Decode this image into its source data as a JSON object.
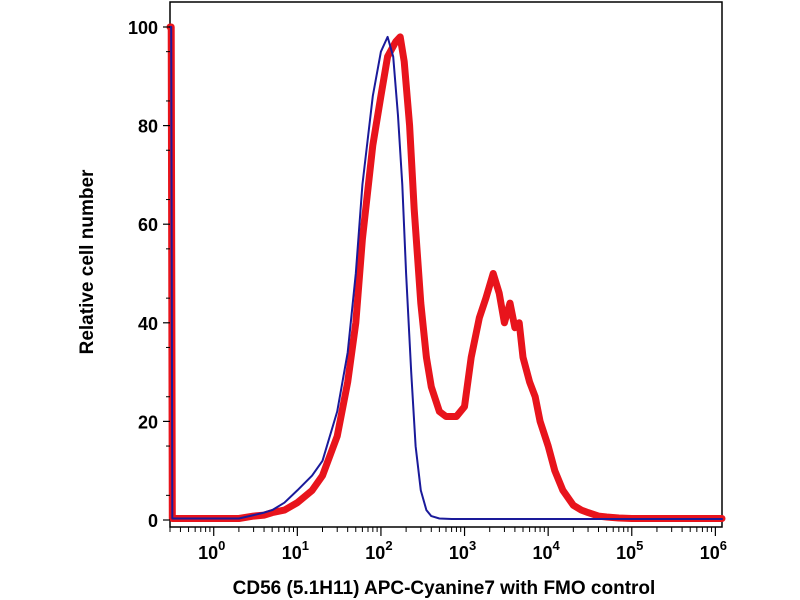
{
  "chart_data": {
    "type": "line",
    "title": "",
    "xlabel": "CD56 (5.1H11) APC-Cyanine7 with FMO control",
    "ylabel": "Relative cell number",
    "x_scale": "log",
    "xlim": [
      0.3,
      1200000
    ],
    "ylim": [
      0,
      100
    ],
    "x_ticks": [
      {
        "value": 1,
        "base": "10",
        "exp": "0"
      },
      {
        "value": 10,
        "base": "10",
        "exp": "1"
      },
      {
        "value": 100,
        "base": "10",
        "exp": "2"
      },
      {
        "value": 1000,
        "base": "10",
        "exp": "3"
      },
      {
        "value": 10000,
        "base": "10",
        "exp": "4"
      },
      {
        "value": 100000,
        "base": "10",
        "exp": "5"
      },
      {
        "value": 1000000,
        "base": "10",
        "exp": "6"
      }
    ],
    "y_ticks": [
      {
        "value": 0,
        "label": "0"
      },
      {
        "value": 20,
        "label": "20"
      },
      {
        "value": 40,
        "label": "40"
      },
      {
        "value": 60,
        "label": "60"
      },
      {
        "value": 80,
        "label": "80"
      },
      {
        "value": 100,
        "label": "100"
      }
    ],
    "grid": false,
    "legend": "none",
    "series": [
      {
        "color": "#e8141c",
        "x": [
          0.3,
          0.31,
          0.32,
          0.33,
          0.35,
          0.4,
          0.7,
          1,
          2,
          3,
          4,
          5,
          7,
          10,
          15,
          20,
          30,
          40,
          50,
          60,
          80,
          100,
          120,
          150,
          170,
          190,
          220,
          250,
          300,
          350,
          400,
          500,
          600,
          800,
          1000,
          1200,
          1500,
          1800,
          2200,
          2600,
          3000,
          3500,
          4000,
          4500,
          5000,
          6000,
          7000,
          8000,
          10000,
          12000,
          15000,
          20000,
          25000,
          30000,
          40000,
          50000,
          70000,
          100000,
          200000,
          500000,
          1000000,
          1200000
        ],
        "y": [
          100,
          100,
          0.3,
          0.3,
          0.3,
          0.3,
          0.3,
          0.3,
          0.3,
          0.8,
          1,
          1.5,
          2,
          3.5,
          6,
          9,
          17,
          28,
          40,
          57,
          76,
          86,
          94,
          97,
          98,
          93,
          80,
          63,
          44,
          33,
          27,
          22,
          21,
          21,
          23,
          33,
          41,
          45,
          50,
          46,
          40,
          44,
          39,
          40,
          33,
          28,
          25,
          20,
          15,
          10,
          6,
          3,
          2,
          1.5,
          0.8,
          0.6,
          0.4,
          0.3,
          0.3,
          0.3,
          0.3,
          0.3
        ]
      },
      {
        "color": "#1a1a9a",
        "x": [
          0.3,
          0.31,
          0.32,
          0.33,
          0.35,
          0.4,
          0.7,
          1,
          2,
          3,
          4,
          5,
          7,
          10,
          15,
          20,
          30,
          40,
          50,
          60,
          80,
          100,
          120,
          140,
          160,
          180,
          200,
          230,
          260,
          300,
          350,
          400,
          500,
          700,
          1000,
          10000,
          100000,
          1000000,
          1200000
        ],
        "y": [
          100,
          100,
          0.3,
          0.3,
          0.3,
          0.3,
          0.3,
          0.3,
          0.3,
          1,
          1.5,
          2,
          3.5,
          6,
          9,
          12,
          22,
          34,
          50,
          68,
          86,
          95,
          98,
          94,
          82,
          68,
          50,
          30,
          15,
          6,
          2,
          0.8,
          0.3,
          0.2,
          0.2,
          0.2,
          0.2,
          0.2,
          0.2
        ]
      }
    ]
  }
}
